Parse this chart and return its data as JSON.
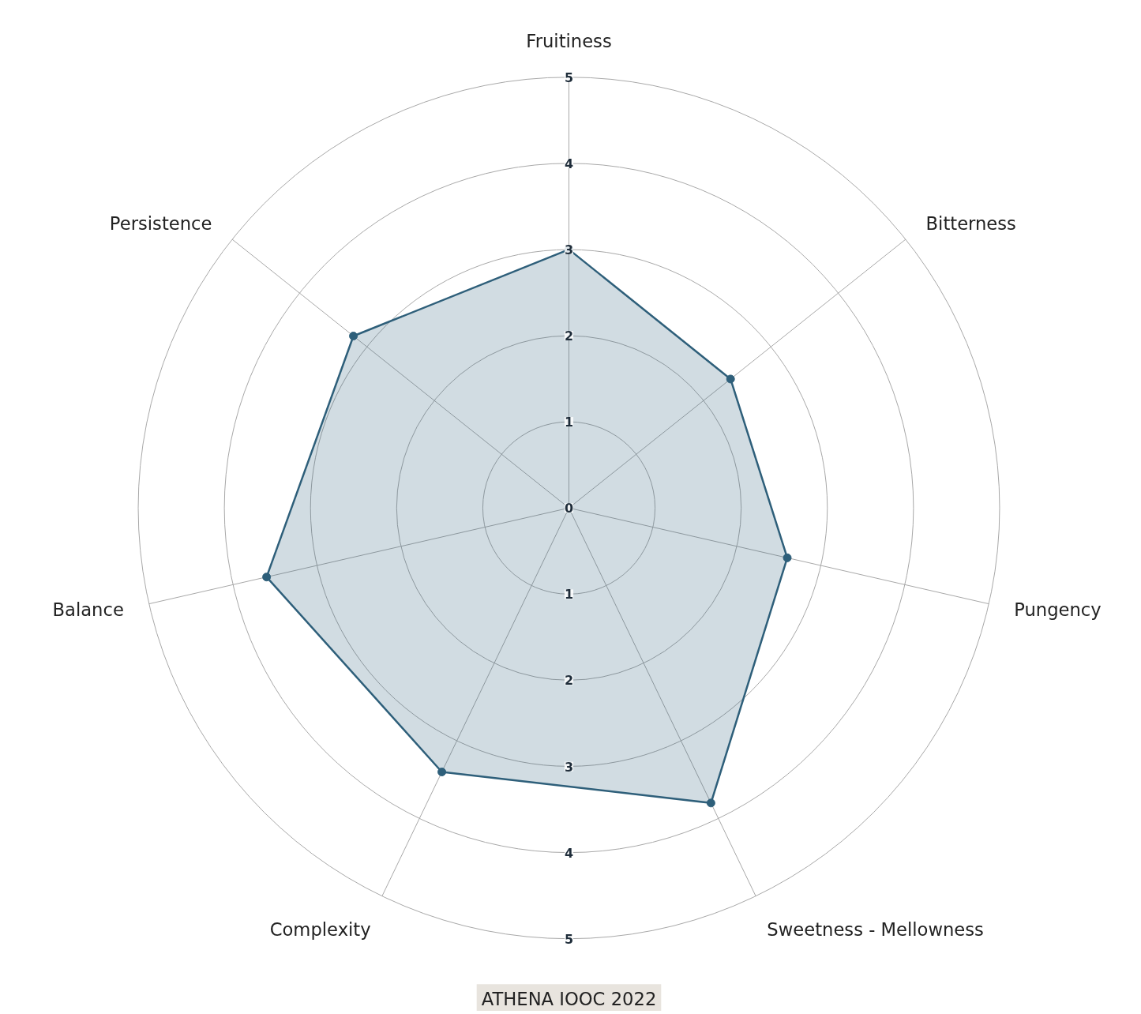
{
  "chart_data": {
    "type": "radar",
    "categories": [
      "Fruitiness",
      "Bitterness",
      "Pungency",
      "Sweetness - Mellowness",
      "Complexity",
      "Balance",
      "Persistence"
    ],
    "series": [
      {
        "color": "#2e5f7a",
        "values": [
          3.0,
          2.4,
          2.6,
          3.8,
          3.4,
          3.6,
          3.2
        ]
      }
    ],
    "ylim": [
      0,
      5
    ],
    "yticks": [
      0,
      1,
      2,
      3,
      4,
      5
    ],
    "grid": true,
    "marker": "circle",
    "annotations": [
      "1",
      "2",
      "3",
      "4",
      "5",
      "ATHENA IOOC 2022"
    ]
  }
}
